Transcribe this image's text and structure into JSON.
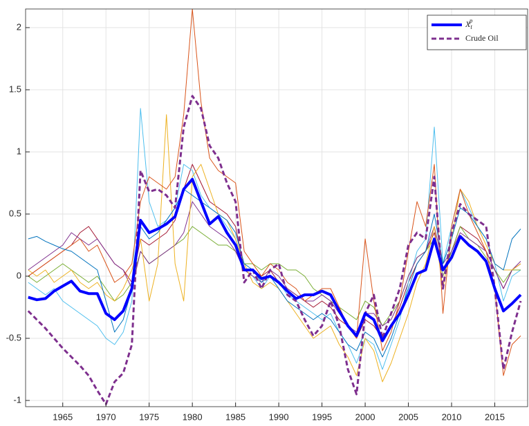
{
  "chart_data": {
    "type": "line",
    "x": [
      1961,
      1962,
      1963,
      1964,
      1965,
      1966,
      1967,
      1968,
      1969,
      1970,
      1971,
      1972,
      1973,
      1974,
      1975,
      1976,
      1977,
      1978,
      1979,
      1980,
      1981,
      1982,
      1983,
      1984,
      1985,
      1986,
      1987,
      1988,
      1989,
      1990,
      1991,
      1992,
      1993,
      1994,
      1995,
      1996,
      1997,
      1998,
      1999,
      2000,
      2001,
      2002,
      2003,
      2004,
      2005,
      2006,
      2007,
      2008,
      2009,
      2010,
      2011,
      2012,
      2013,
      2014,
      2015,
      2016,
      2017,
      2018
    ],
    "xlim": [
      1960.7,
      2018.8
    ],
    "xticks": [
      1965,
      1970,
      1975,
      1980,
      1985,
      1990,
      1995,
      2000,
      2005,
      2010,
      2015
    ],
    "ylim": [
      -1.05,
      2.15
    ],
    "yticks": [
      -1,
      -0.5,
      0,
      0.5,
      1,
      1.5,
      2
    ],
    "grid": true,
    "legend": "top-right",
    "series": [
      {
        "name": "X_t^p",
        "color": "#0000ff",
        "width": 4,
        "values": [
          -0.17,
          -0.19,
          -0.18,
          -0.12,
          -0.08,
          -0.04,
          -0.12,
          -0.14,
          -0.14,
          -0.3,
          -0.35,
          -0.28,
          -0.1,
          0.45,
          0.35,
          0.38,
          0.42,
          0.48,
          0.7,
          0.78,
          0.6,
          0.42,
          0.48,
          0.35,
          0.25,
          0.05,
          0.05,
          -0.02,
          0.0,
          -0.05,
          -0.12,
          -0.18,
          -0.15,
          -0.15,
          -0.12,
          -0.15,
          -0.28,
          -0.4,
          -0.48,
          -0.3,
          -0.35,
          -0.52,
          -0.4,
          -0.3,
          -0.15,
          0.02,
          0.05,
          0.3,
          0.05,
          0.15,
          0.32,
          0.25,
          0.2,
          0.12,
          -0.1,
          -0.28,
          -0.22,
          -0.15
        ]
      },
      {
        "name": "Crude Oil",
        "color": "#7e2f8e",
        "width": 3,
        "dashed": true,
        "values": [
          -0.28,
          -0.35,
          -0.42,
          -0.5,
          -0.58,
          -0.65,
          -0.72,
          -0.8,
          -0.92,
          -1.03,
          -0.85,
          -0.78,
          -0.55,
          0.85,
          0.68,
          0.7,
          0.65,
          0.55,
          1.2,
          1.45,
          1.35,
          1.05,
          0.95,
          0.75,
          0.6,
          -0.05,
          0.05,
          -0.1,
          0.05,
          0.1,
          -0.15,
          -0.2,
          -0.35,
          -0.48,
          -0.4,
          -0.2,
          -0.4,
          -0.75,
          -0.95,
          -0.3,
          -0.15,
          -0.5,
          -0.3,
          -0.1,
          0.25,
          0.35,
          0.3,
          0.8,
          -0.1,
          0.35,
          0.58,
          0.5,
          0.45,
          0.4,
          -0.1,
          -0.75,
          -0.45,
          -0.2
        ]
      },
      {
        "color": "#0072bd",
        "width": 1,
        "values": [
          0.3,
          0.32,
          0.28,
          0.25,
          0.22,
          0.2,
          0.15,
          0.1,
          0.05,
          -0.2,
          -0.45,
          -0.35,
          -0.1,
          0.4,
          0.3,
          0.35,
          0.45,
          0.55,
          0.7,
          0.65,
          0.6,
          0.55,
          0.5,
          0.45,
          0.35,
          0.1,
          0.05,
          -0.05,
          0.0,
          -0.1,
          -0.2,
          -0.25,
          -0.3,
          -0.35,
          -0.3,
          -0.35,
          -0.45,
          -0.55,
          -0.6,
          -0.45,
          -0.5,
          -0.65,
          -0.5,
          -0.3,
          -0.1,
          0.1,
          0.2,
          0.5,
          0.1,
          0.3,
          0.55,
          0.5,
          0.4,
          0.3,
          0.1,
          0.05,
          0.3,
          0.38
        ]
      },
      {
        "color": "#d95319",
        "width": 1,
        "values": [
          0.0,
          0.05,
          0.1,
          0.15,
          0.2,
          0.25,
          0.3,
          0.2,
          0.25,
          0.1,
          -0.05,
          0.0,
          0.1,
          0.6,
          0.8,
          0.75,
          0.7,
          0.8,
          1.3,
          2.15,
          1.4,
          0.95,
          0.85,
          0.8,
          0.75,
          0.2,
          0.1,
          0.0,
          0.1,
          0.05,
          -0.05,
          -0.1,
          -0.2,
          -0.15,
          -0.1,
          -0.1,
          -0.25,
          -0.4,
          -0.5,
          0.3,
          -0.2,
          -0.6,
          -0.45,
          -0.2,
          0.2,
          0.6,
          0.4,
          0.9,
          -0.3,
          0.4,
          0.7,
          0.5,
          0.35,
          0.2,
          -0.1,
          -0.8,
          -0.55,
          -0.48
        ]
      },
      {
        "color": "#edb120",
        "width": 1,
        "values": [
          0.05,
          0.0,
          0.05,
          -0.05,
          0.0,
          0.05,
          -0.05,
          -0.1,
          -0.05,
          -0.15,
          -0.2,
          -0.1,
          0.05,
          0.3,
          -0.2,
          0.1,
          1.3,
          0.1,
          -0.2,
          0.8,
          0.9,
          0.7,
          0.5,
          0.45,
          0.3,
          0.1,
          -0.05,
          -0.1,
          -0.05,
          -0.1,
          -0.2,
          -0.3,
          -0.4,
          -0.5,
          -0.45,
          -0.4,
          -0.55,
          -0.65,
          -0.8,
          -0.5,
          -0.6,
          -0.85,
          -0.7,
          -0.5,
          -0.3,
          -0.05,
          0.1,
          0.4,
          -0.1,
          0.3,
          0.7,
          0.6,
          0.4,
          0.25,
          0.1,
          0.05,
          0.05,
          0.1
        ]
      },
      {
        "color": "#7e2f8e",
        "width": 1,
        "values": [
          0.05,
          0.1,
          0.15,
          0.2,
          0.25,
          0.35,
          0.3,
          0.25,
          0.3,
          0.2,
          0.1,
          0.05,
          -0.1,
          0.2,
          0.1,
          0.15,
          0.2,
          0.25,
          0.35,
          0.6,
          0.5,
          0.4,
          0.35,
          0.3,
          0.2,
          0.05,
          0.0,
          -0.05,
          0.05,
          0.0,
          -0.1,
          -0.15,
          -0.2,
          -0.2,
          -0.15,
          -0.2,
          -0.3,
          -0.4,
          -0.45,
          -0.3,
          -0.3,
          -0.4,
          -0.35,
          -0.2,
          0.0,
          0.15,
          0.2,
          0.4,
          0.1,
          0.2,
          0.35,
          0.3,
          0.25,
          0.2,
          0.05,
          -0.1,
          0.05,
          0.12
        ]
      },
      {
        "color": "#77ac30",
        "width": 1,
        "values": [
          0.0,
          -0.05,
          0.0,
          0.05,
          0.1,
          0.05,
          0.0,
          -0.05,
          0.0,
          -0.1,
          -0.2,
          -0.15,
          -0.05,
          0.2,
          0.1,
          0.15,
          0.2,
          0.25,
          0.3,
          0.4,
          0.35,
          0.3,
          0.25,
          0.25,
          0.2,
          0.1,
          0.1,
          0.05,
          0.1,
          0.1,
          0.05,
          0.05,
          0.0,
          -0.1,
          -0.15,
          -0.2,
          -0.25,
          -0.3,
          -0.35,
          -0.2,
          -0.25,
          -0.4,
          -0.3,
          -0.2,
          0.0,
          0.15,
          0.2,
          0.3,
          0.0,
          0.2,
          0.4,
          0.3,
          0.25,
          0.15,
          0.05,
          -0.05,
          0.05,
          0.05
        ]
      },
      {
        "color": "#4dbeee",
        "width": 1,
        "values": [
          -0.05,
          -0.1,
          -0.15,
          -0.1,
          -0.2,
          -0.25,
          -0.3,
          -0.35,
          -0.4,
          -0.5,
          -0.55,
          -0.45,
          -0.2,
          1.35,
          0.6,
          0.4,
          0.45,
          0.55,
          0.9,
          0.85,
          0.65,
          0.55,
          0.5,
          0.4,
          0.3,
          0.05,
          0.0,
          -0.1,
          0.0,
          -0.05,
          -0.15,
          -0.2,
          -0.25,
          -0.3,
          -0.35,
          -0.3,
          -0.45,
          -0.55,
          -0.7,
          -0.5,
          -0.55,
          -0.75,
          -0.55,
          -0.35,
          -0.05,
          0.2,
          0.3,
          1.2,
          0.1,
          0.4,
          0.7,
          0.55,
          0.4,
          0.3,
          0.1,
          -0.2,
          0.0,
          0.05
        ]
      },
      {
        "color": "#a2142f",
        "width": 1,
        "values": [
          0.0,
          0.05,
          0.1,
          0.15,
          0.2,
          0.25,
          0.35,
          0.4,
          0.3,
          0.2,
          0.1,
          0.05,
          -0.05,
          0.3,
          0.25,
          0.3,
          0.35,
          0.45,
          0.7,
          0.9,
          0.75,
          0.6,
          0.55,
          0.5,
          0.4,
          0.05,
          0.05,
          0.0,
          0.05,
          -0.05,
          -0.1,
          -0.15,
          -0.2,
          -0.25,
          -0.2,
          -0.25,
          -0.35,
          -0.4,
          -0.5,
          -0.35,
          -0.4,
          -0.5,
          -0.4,
          -0.25,
          -0.05,
          0.1,
          0.2,
          0.35,
          0.05,
          0.2,
          0.4,
          0.35,
          0.3,
          0.2,
          0.05,
          -0.1,
          0.05,
          0.1
        ]
      }
    ]
  }
}
